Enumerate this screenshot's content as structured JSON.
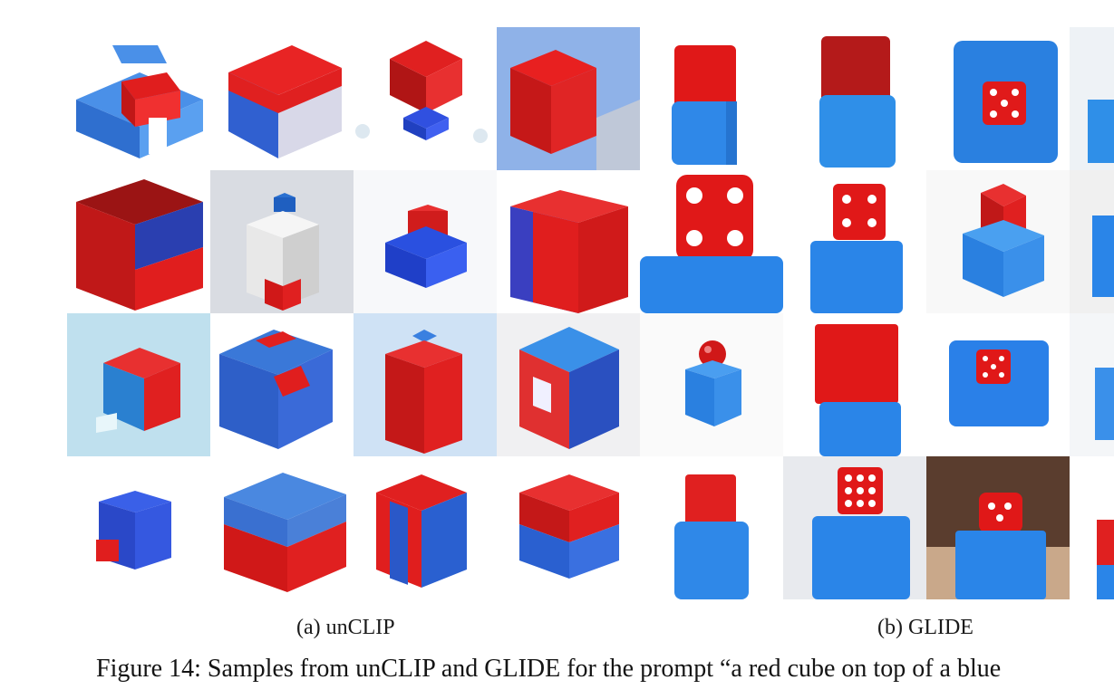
{
  "figure": {
    "subcaption_a": "(a) unCLIP",
    "subcaption_b": "(b) GLIDE",
    "caption": "Figure 14: Samples from unCLIP and GLIDE for the prompt “a red cube on top of a blue"
  },
  "colors": {
    "red": "#e01e1e",
    "dark_red": "#9b1414",
    "blue": "#2f7fe0",
    "dark_blue": "#1d3fb8",
    "background": "#ffffff"
  }
}
